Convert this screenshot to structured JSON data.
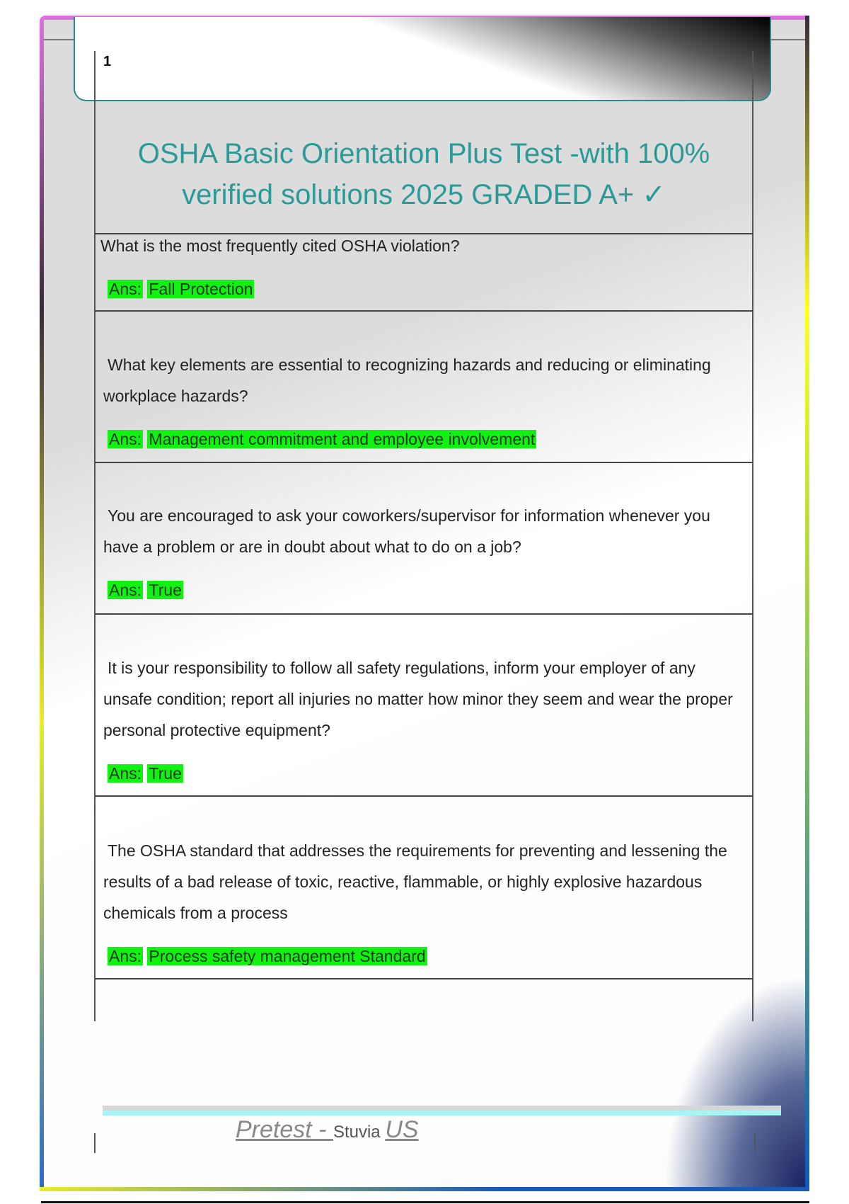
{
  "page_number": "1",
  "title_line1": "OSHA Basic Orientation Plus Test -with 100%",
  "title_line2": "verified solutions 2025 GRADED A+ ✓",
  "items": [
    {
      "question": "What is the most frequently cited OSHA violation?",
      "ans_label": "Ans:",
      "answer": "Fall Protection"
    },
    {
      "question": "What key elements are essential to recognizing hazards and reducing or eliminating workplace hazards?",
      "ans_label": "Ans:",
      "answer": "Management commitment and employee involvement"
    },
    {
      "question": "You are encouraged to ask your coworkers/supervisor for information whenever you have a problem or are in doubt about what to do on a job?",
      "ans_label": "Ans:",
      "answer": "True"
    },
    {
      "question": "It is your responsibility to follow all safety regulations, inform your employer of any unsafe condition; report all injuries no matter how minor they seem and wear the proper personal protective equipment?",
      "ans_label": "Ans:",
      "answer": "True"
    },
    {
      "question": "The OSHA standard that addresses the requirements for preventing and lessening the results of a bad release of toxic, reactive, flammable, or highly explosive hazardous chemicals from a process",
      "ans_label": "Ans:",
      "answer": "Process safety management Standard"
    }
  ],
  "footer": {
    "part1": "Pretest - ",
    "part2": "Stuvia ",
    "part3": "US"
  },
  "colors": {
    "title": "#2a9a98",
    "highlight": "#12f212"
  }
}
